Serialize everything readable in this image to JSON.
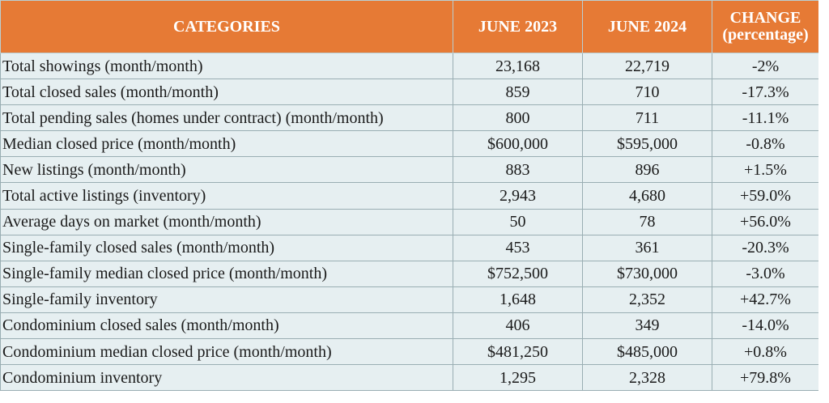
{
  "table": {
    "headers": {
      "categories": "CATEGORIES",
      "june_2023": "JUNE 2023",
      "june_2024": "JUNE 2024",
      "change_line1": "CHANGE",
      "change_line2": "(percentage)"
    },
    "header_color": "#E67A35",
    "row_color": "#E6EFF1",
    "rows": [
      {
        "category": "Total showings (month/month)",
        "june_2023": "23,168",
        "june_2024": "22,719",
        "change": "-2%"
      },
      {
        "category": "Total closed sales (month/month)",
        "june_2023": "859",
        "june_2024": "710",
        "change": "-17.3%"
      },
      {
        "category": "Total pending sales (homes under contract) (month/month)",
        "june_2023": "800",
        "june_2024": "711",
        "change": "-11.1%"
      },
      {
        "category": "Median closed price (month/month)",
        "june_2023": "$600,000",
        "june_2024": "$595,000",
        "change": "-0.8%"
      },
      {
        "category": "New listings (month/month)",
        "june_2023": "883",
        "june_2024": "896",
        "change": "+1.5%"
      },
      {
        "category": "Total active listings (inventory)",
        "june_2023": "2,943",
        "june_2024": "4,680",
        "change": "+59.0%"
      },
      {
        "category": "Average days on market (month/month)",
        "june_2023": "50",
        "june_2024": "78",
        "change": "+56.0%"
      },
      {
        "category": "Single-family closed sales (month/month)",
        "june_2023": "453",
        "june_2024": "361",
        "change": "-20.3%"
      },
      {
        "category": "Single-family median closed price (month/month)",
        "june_2023": "$752,500",
        "june_2024": "$730,000",
        "change": "-3.0%"
      },
      {
        "category": "Single-family inventory",
        "june_2023": "1,648",
        "june_2024": "2,352",
        "change": "+42.7%"
      },
      {
        "category": "Condominium closed sales (month/month)",
        "june_2023": "406",
        "june_2024": "349",
        "change": "-14.0%"
      },
      {
        "category": "Condominium median closed price (month/month)",
        "june_2023": "$481,250",
        "june_2024": "$485,000",
        "change": "+0.8%"
      },
      {
        "category": "Condominium inventory",
        "june_2023": "1,295",
        "june_2024": "2,328",
        "change": "+79.8%"
      }
    ]
  }
}
